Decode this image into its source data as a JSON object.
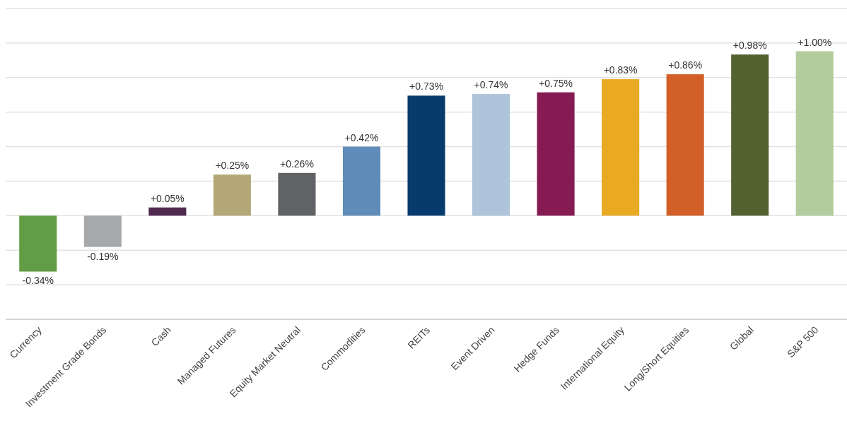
{
  "chart_data": {
    "type": "bar",
    "categories": [
      "Currency",
      "Investment Grade Bonds",
      "Cash",
      "Managed Futures",
      "Equity Market Neutral",
      "Commodities",
      "REITs",
      "Event Driven",
      "Hedge Funds",
      "International Equity",
      "Long/Short Equities",
      "Global",
      "S&P 500"
    ],
    "values": [
      -0.34,
      -0.19,
      0.05,
      0.25,
      0.26,
      0.42,
      0.73,
      0.74,
      0.75,
      0.83,
      0.86,
      0.98,
      1.0
    ],
    "value_labels": [
      "-0.34%",
      "-0.19%",
      "+0.05%",
      "+0.25%",
      "+0.26%",
      "+0.42%",
      "+0.73%",
      "+0.74%",
      "+0.75%",
      "+0.83%",
      "+0.86%",
      "+0.98%",
      "+1.00%"
    ],
    "colors": [
      "#629c44",
      "#a7a8aa",
      "#4f2a4e",
      "#b4a878",
      "#616265",
      "#5f8cb8",
      "#073b6d",
      "#aec4da",
      "#861b54",
      "#e9a922",
      "#d35f28",
      "#536231",
      "#b3cc9d"
    ],
    "ylim": [
      -0.63,
      1.26
    ],
    "yticks": [
      {
        "value": -0.63,
        "label": null
      },
      {
        "value": -0.42,
        "label": null
      },
      {
        "value": -0.21,
        "label": null
      },
      {
        "value": 0,
        "label": null
      },
      {
        "value": 0.21,
        "label": null
      },
      {
        "value": 0.42,
        "label": null
      },
      {
        "value": 0.63,
        "label": null
      },
      {
        "value": 0.84,
        "label": null
      },
      {
        "value": 1.05,
        "label": null
      },
      {
        "value": 1.26,
        "label": null
      }
    ],
    "grid": "y",
    "tick_labels": "x"
  }
}
